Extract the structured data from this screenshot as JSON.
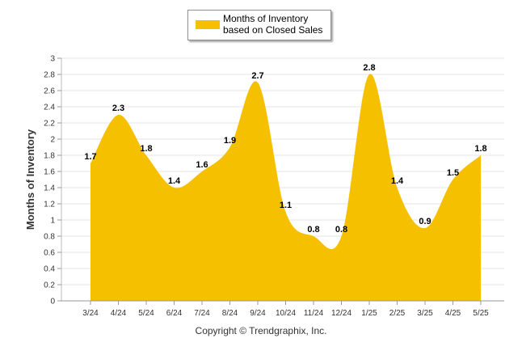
{
  "legend": {
    "label": "Months of Inventory based on Closed Sales",
    "color": "#F5C000"
  },
  "copyright": "Copyright © Trendgraphix, Inc.",
  "chart_data": {
    "type": "area",
    "categories": [
      "3/24",
      "4/24",
      "5/24",
      "6/24",
      "7/24",
      "8/24",
      "9/24",
      "10/24",
      "11/24",
      "12/24",
      "1/25",
      "2/25",
      "3/25",
      "4/25",
      "5/25"
    ],
    "series": [
      {
        "name": "Months of Inventory based on Closed Sales",
        "values": [
          1.7,
          2.3,
          1.8,
          1.4,
          1.6,
          1.9,
          2.7,
          1.1,
          0.8,
          0.8,
          2.8,
          1.4,
          0.9,
          1.5,
          1.8
        ]
      }
    ],
    "data_labels": [
      "1.7",
      "2.3",
      "1.8",
      "1.4",
      "1.6",
      "1.9",
      "2.7",
      "1.1",
      "0.8",
      "0.8",
      "2.8",
      "1.4",
      "0.9",
      "1.5",
      "1.8"
    ],
    "yticks": [
      "0",
      "0.2",
      "0.4",
      "0.6",
      "0.8",
      "1",
      "1.2",
      "1.4",
      "1.6",
      "1.8",
      "2",
      "2.2",
      "2.4",
      "2.6",
      "2.8",
      "3"
    ],
    "ylabel": "Months of Inventory",
    "xlabel": "",
    "ylim": [
      0,
      3
    ],
    "grid": true,
    "legend_position": "top-center",
    "fill_color": "#F5C000",
    "grid_color": "#e6e6e6"
  }
}
